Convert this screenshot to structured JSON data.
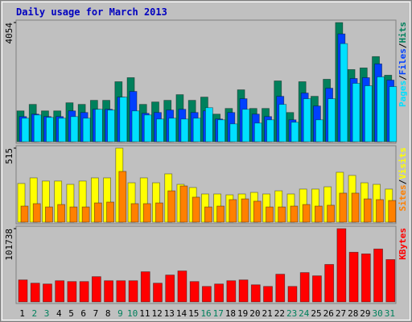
{
  "title": "Daily usage for March 2013",
  "legend_separator": "/",
  "chart_data": [
    {
      "type": "bar",
      "ylim": [
        0,
        4054
      ],
      "yticks": [
        4054
      ],
      "series": [
        {
          "name": "Hits",
          "color": "#00805c",
          "values": [
            1048,
            1269,
            1048,
            1048,
            1324,
            1269,
            1407,
            1407,
            2041,
            2179,
            1269,
            1351,
            1407,
            1600,
            1407,
            1517,
            938,
            1131,
            1765,
            1131,
            1131,
            2068,
            993,
            2041,
            1544,
            2124,
            4054,
            2455,
            2510,
            2896,
            2262
          ]
        },
        {
          "name": "Files",
          "color": "#0040ff",
          "values": [
            855,
            938,
            855,
            855,
            1048,
            993,
            1103,
            1103,
            1517,
            1710,
            965,
            993,
            1076,
            1103,
            993,
            1048,
            772,
            993,
            1462,
            938,
            855,
            1544,
            745,
            1655,
            1214,
            1820,
            3668,
            2151,
            2179,
            2648,
            2096
          ]
        },
        {
          "name": "Pages",
          "color": "#00e0ff",
          "values": [
            800,
            910,
            827,
            800,
            855,
            800,
            1103,
            1076,
            1517,
            1048,
            910,
            772,
            800,
            772,
            800,
            1158,
            745,
            607,
            1103,
            634,
            745,
            1269,
            662,
            1462,
            745,
            1462,
            3337,
            1986,
            1903,
            2206,
            1875
          ]
        }
      ]
    },
    {
      "type": "bar",
      "ylim": [
        0,
        515
      ],
      "yticks": [
        515
      ],
      "series": [
        {
          "name": "Visits",
          "color": "#ffff00",
          "values": [
            269,
            308,
            286,
            286,
            263,
            286,
            308,
            308,
            515,
            274,
            308,
            274,
            336,
            263,
            241,
            196,
            196,
            190,
            196,
            207,
            196,
            218,
            196,
            230,
            230,
            246,
            347,
            325,
            274,
            263,
            230
          ]
        },
        {
          "name": "Sites",
          "color": "#ff8000",
          "values": [
            112,
            129,
            106,
            123,
            106,
            106,
            134,
            140,
            353,
            129,
            129,
            134,
            218,
            252,
            174,
            106,
            112,
            157,
            162,
            146,
            106,
            106,
            112,
            123,
            112,
            118,
            202,
            202,
            162,
            157,
            151
          ]
        }
      ]
    },
    {
      "type": "bar",
      "ylim": [
        0,
        101738
      ],
      "yticks": [
        101738
      ],
      "categories": [
        "1",
        "2",
        "3",
        "4",
        "5",
        "6",
        "7",
        "8",
        "9",
        "10",
        "11",
        "12",
        "13",
        "14",
        "15",
        "16",
        "17",
        "18",
        "19",
        "20",
        "21",
        "22",
        "23",
        "24",
        "25",
        "26",
        "27",
        "28",
        "29",
        "30",
        "31"
      ],
      "category_colors": [
        "#000000",
        "#00805c",
        "#00805c",
        "#000000",
        "#000000",
        "#000000",
        "#000000",
        "#000000",
        "#00805c",
        "#00805c",
        "#000000",
        "#000000",
        "#000000",
        "#000000",
        "#000000",
        "#00805c",
        "#00805c",
        "#000000",
        "#000000",
        "#000000",
        "#000000",
        "#000000",
        "#00805c",
        "#00805c",
        "#000000",
        "#000000",
        "#000000",
        "#000000",
        "#000000",
        "#00805c",
        "#00805c"
      ],
      "series": [
        {
          "name": "KBytes",
          "color": "#ff0000",
          "values": [
            30521,
            26000,
            24869,
            29390,
            28260,
            28260,
            35042,
            29390,
            29390,
            29390,
            41825,
            26000,
            37303,
            42955,
            28260,
            21478,
            24869,
            29390,
            30521,
            23738,
            21478,
            38434,
            21478,
            40694,
            36173,
            51998,
            101738,
            68954,
            66694,
            73476,
            58781
          ]
        }
      ]
    }
  ]
}
